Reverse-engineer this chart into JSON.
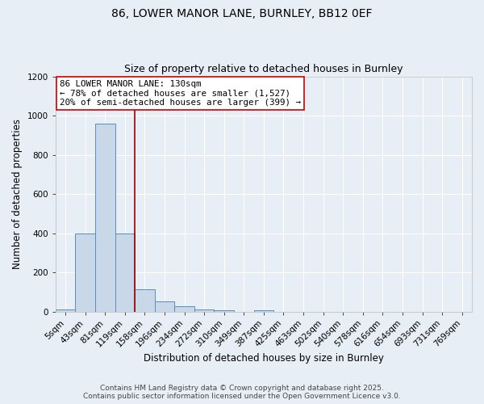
{
  "title": "86, LOWER MANOR LANE, BURNLEY, BB12 0EF",
  "subtitle": "Size of property relative to detached houses in Burnley",
  "xlabel": "Distribution of detached houses by size in Burnley",
  "ylabel": "Number of detached properties",
  "categories": [
    "5sqm",
    "43sqm",
    "81sqm",
    "119sqm",
    "158sqm",
    "196sqm",
    "234sqm",
    "272sqm",
    "310sqm",
    "349sqm",
    "387sqm",
    "425sqm",
    "463sqm",
    "502sqm",
    "540sqm",
    "578sqm",
    "616sqm",
    "654sqm",
    "693sqm",
    "731sqm",
    "769sqm"
  ],
  "values": [
    10,
    400,
    960,
    400,
    115,
    50,
    25,
    10,
    8,
    0,
    8,
    0,
    0,
    0,
    0,
    0,
    0,
    0,
    0,
    0,
    0
  ],
  "bar_color": "#c8d8e8",
  "bar_edge_color": "#5b8db8",
  "red_line_x": 3.5,
  "annotation_text": "86 LOWER MANOR LANE: 130sqm\n← 78% of detached houses are smaller (1,527)\n20% of semi-detached houses are larger (399) →",
  "annotation_box_color": "#ffffff",
  "annotation_box_edge": "#cc0000",
  "ylim": [
    0,
    1200
  ],
  "yticks": [
    0,
    200,
    400,
    600,
    800,
    1000,
    1200
  ],
  "bg_color": "#e8eef5",
  "plot_bg_color": "#e8eef5",
  "grid_color": "#ffffff",
  "footer_line1": "Contains HM Land Registry data © Crown copyright and database right 2025.",
  "footer_line2": "Contains public sector information licensed under the Open Government Licence v3.0.",
  "red_line_color": "#990000",
  "title_fontsize": 10,
  "subtitle_fontsize": 9,
  "axis_label_fontsize": 8.5,
  "tick_fontsize": 7.5,
  "footer_fontsize": 6.5,
  "annotation_fontsize": 7.8
}
